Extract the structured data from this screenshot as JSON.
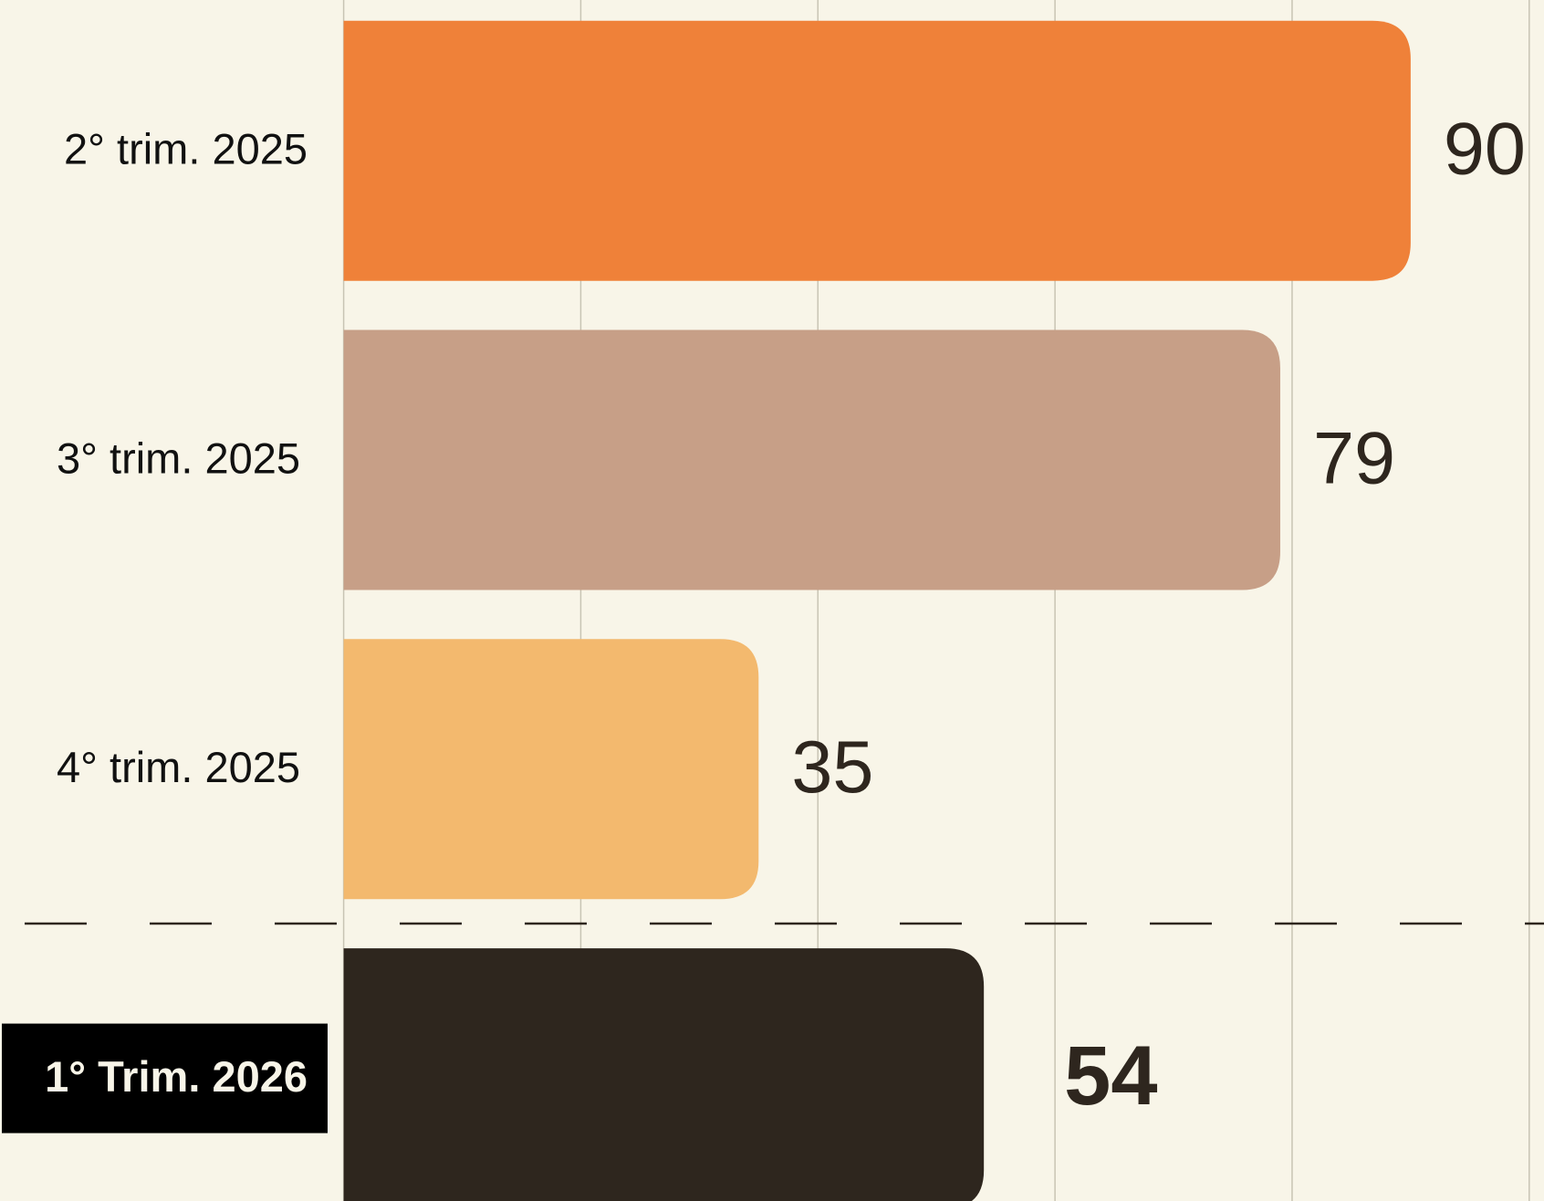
{
  "chart_data": {
    "type": "bar",
    "orientation": "horizontal",
    "categories": [
      "2° trim. 2025",
      "3° trim. 2025",
      "4° trim. 2025",
      "1° Trim. 2026"
    ],
    "values": [
      90,
      79,
      35,
      54
    ],
    "colors": [
      "#ef8139",
      "#c79f87",
      "#f3b96e",
      "#2e261e"
    ],
    "highlight": 3,
    "xlim": [
      0,
      100
    ],
    "xticks": [
      0,
      20,
      40,
      60,
      80,
      100
    ],
    "grid": true
  }
}
